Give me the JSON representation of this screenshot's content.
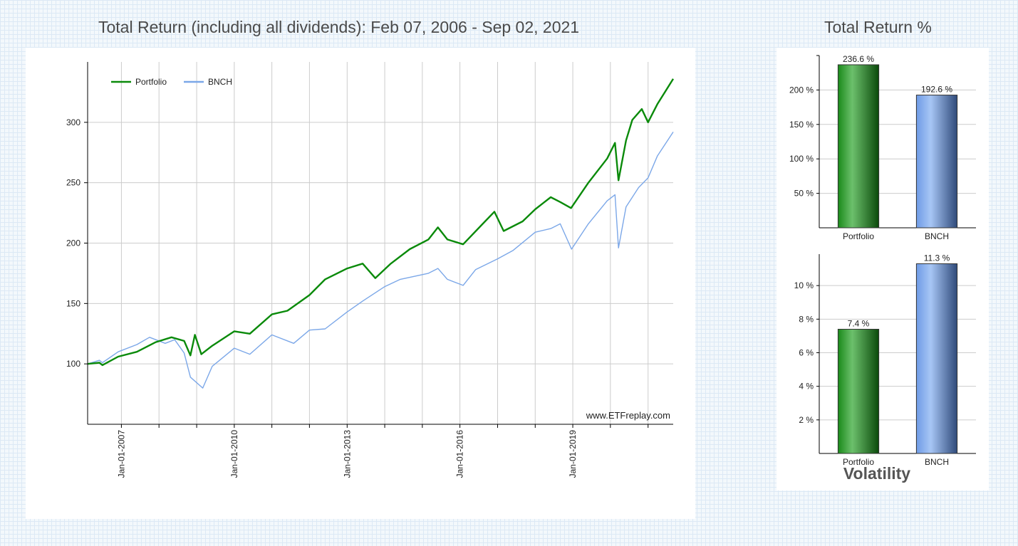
{
  "page": {
    "main_title": "Total Return (including all dividends): Feb 07, 2006 - Sep 02, 2021",
    "total_return_title": "Total Return %",
    "volatility_title": "Volatility",
    "watermark": "www.ETFreplay.com"
  },
  "colors": {
    "portfolio": "#0a8a0a",
    "bench": "#7ba7e8",
    "grid": "#cccccc"
  },
  "chart_data": [
    {
      "type": "line",
      "title": "Total Return (including all dividends): Feb 07, 2006 - Sep 02, 2021",
      "y_ticks": [
        100,
        150,
        200,
        250,
        300
      ],
      "ylim": [
        50,
        350
      ],
      "xlim": [
        "2006-02-07",
        "2021-09-02"
      ],
      "x_tick_labels": [
        "Jan-01-2007",
        "Jan-01-2010",
        "Jan-01-2013",
        "Jan-01-2016",
        "Jan-01-2019"
      ],
      "grid": true,
      "legend": "top-left",
      "series": [
        {
          "name": "Portfolio",
          "points": [
            [
              "2006-02-07",
              100
            ],
            [
              "2006-06-01",
              101
            ],
            [
              "2006-07-01",
              99
            ],
            [
              "2006-12-01",
              106
            ],
            [
              "2007-06-01",
              110
            ],
            [
              "2007-12-01",
              118
            ],
            [
              "2008-05-01",
              122
            ],
            [
              "2008-09-01",
              119
            ],
            [
              "2008-11-01",
              107
            ],
            [
              "2008-12-15",
              124
            ],
            [
              "2009-02-15",
              108
            ],
            [
              "2009-06-01",
              115
            ],
            [
              "2010-01-01",
              127
            ],
            [
              "2010-06-01",
              125
            ],
            [
              "2011-01-01",
              141
            ],
            [
              "2011-06-01",
              144
            ],
            [
              "2012-01-01",
              157
            ],
            [
              "2012-06-01",
              170
            ],
            [
              "2013-01-01",
              179
            ],
            [
              "2013-06-01",
              183
            ],
            [
              "2013-10-01",
              171
            ],
            [
              "2014-03-01",
              183
            ],
            [
              "2014-09-01",
              195
            ],
            [
              "2015-03-01",
              203
            ],
            [
              "2015-06-01",
              213
            ],
            [
              "2015-09-01",
              203
            ],
            [
              "2016-02-01",
              199
            ],
            [
              "2016-09-01",
              218
            ],
            [
              "2016-12-01",
              226
            ],
            [
              "2017-03-01",
              210
            ],
            [
              "2017-09-01",
              218
            ],
            [
              "2018-01-01",
              228
            ],
            [
              "2018-06-01",
              238
            ],
            [
              "2018-09-01",
              234
            ],
            [
              "2018-12-15",
              229
            ],
            [
              "2019-06-01",
              250
            ],
            [
              "2019-12-01",
              270
            ],
            [
              "2020-02-15",
              283
            ],
            [
              "2020-03-20",
              252
            ],
            [
              "2020-06-01",
              285
            ],
            [
              "2020-08-01",
              302
            ],
            [
              "2020-11-01",
              311
            ],
            [
              "2021-01-01",
              300
            ],
            [
              "2021-04-01",
              315
            ],
            [
              "2021-09-02",
              336
            ]
          ]
        },
        {
          "name": "BNCH",
          "points": [
            [
              "2006-02-07",
              100
            ],
            [
              "2006-06-01",
              103
            ],
            [
              "2006-07-01",
              101
            ],
            [
              "2006-12-01",
              110
            ],
            [
              "2007-06-01",
              116
            ],
            [
              "2007-10-01",
              122
            ],
            [
              "2008-03-01",
              117
            ],
            [
              "2008-06-01",
              120
            ],
            [
              "2008-09-01",
              109
            ],
            [
              "2008-11-01",
              89
            ],
            [
              "2009-03-01",
              80
            ],
            [
              "2009-06-01",
              98
            ],
            [
              "2010-01-01",
              113
            ],
            [
              "2010-06-01",
              108
            ],
            [
              "2011-01-01",
              124
            ],
            [
              "2011-08-01",
              117
            ],
            [
              "2012-01-01",
              128
            ],
            [
              "2012-06-01",
              129
            ],
            [
              "2013-01-01",
              143
            ],
            [
              "2013-06-01",
              152
            ],
            [
              "2014-01-01",
              164
            ],
            [
              "2014-06-01",
              170
            ],
            [
              "2015-03-01",
              175
            ],
            [
              "2015-06-01",
              179
            ],
            [
              "2015-09-01",
              170
            ],
            [
              "2016-02-01",
              165
            ],
            [
              "2016-06-01",
              178
            ],
            [
              "2017-01-01",
              187
            ],
            [
              "2017-06-01",
              194
            ],
            [
              "2018-01-01",
              209
            ],
            [
              "2018-06-01",
              212
            ],
            [
              "2018-09-01",
              216
            ],
            [
              "2018-12-20",
              195
            ],
            [
              "2019-06-01",
              216
            ],
            [
              "2019-12-01",
              235
            ],
            [
              "2020-02-15",
              240
            ],
            [
              "2020-03-20",
              196
            ],
            [
              "2020-06-01",
              230
            ],
            [
              "2020-10-01",
              246
            ],
            [
              "2021-01-01",
              254
            ],
            [
              "2021-04-01",
              272
            ],
            [
              "2021-09-02",
              292
            ]
          ]
        }
      ]
    },
    {
      "type": "bar",
      "title": "Total Return %",
      "categories": [
        "Portfolio",
        "BNCH"
      ],
      "values": [
        236.6,
        192.6
      ],
      "value_labels": [
        "236.6 %",
        "192.6 %"
      ],
      "y_ticks": [
        "50 %",
        "100 %",
        "150 %",
        "200 %"
      ],
      "y_tick_values": [
        50,
        100,
        150,
        200
      ],
      "ylim": [
        0,
        250
      ],
      "grid": true
    },
    {
      "type": "bar",
      "title": "Volatility",
      "categories": [
        "Portfolio",
        "BNCH"
      ],
      "values": [
        7.4,
        11.3
      ],
      "value_labels": [
        "7.4 %",
        "11.3 %"
      ],
      "y_ticks": [
        "2 %",
        "4 %",
        "6 %",
        "8 %",
        "10 %"
      ],
      "y_tick_values": [
        2,
        4,
        6,
        8,
        10
      ],
      "ylim": [
        0,
        12
      ],
      "grid": true
    }
  ]
}
